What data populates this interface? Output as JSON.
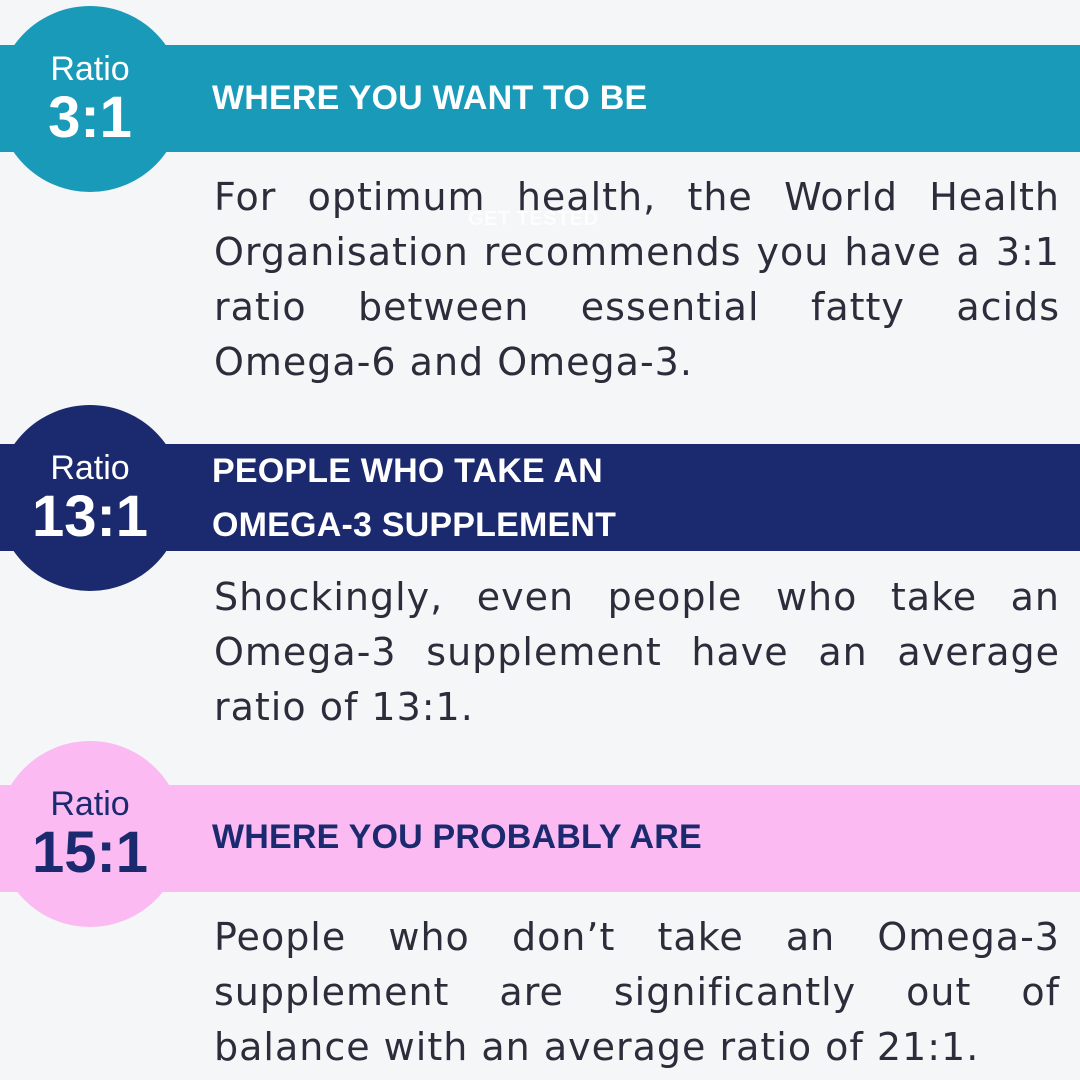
{
  "colors": {
    "background": "#f4f6f8",
    "teal": "#1a9ab9",
    "navy": "#1b2a6e",
    "pink": "#fbbaf2",
    "white": "#ffffff",
    "body_text": "#2c2c3a"
  },
  "sections": [
    {
      "badge_word": "Ratio",
      "badge_ratio": "3:1",
      "heading": "WHERE YOU WANT TO BE",
      "body": "For optimum health, the World Health Organisation recommends you have a 3:1 ratio between essential fatty acids Omega-6 and Omega-3."
    },
    {
      "badge_word": "Ratio",
      "badge_ratio": "13:1",
      "heading_line1": "PEOPLE WHO TAKE AN",
      "heading_line2": "OMEGA-3 SUPPLEMENT",
      "body": "Shockingly, even people who take an Omega-3 supplement have an average ratio of 13:1."
    },
    {
      "badge_word": "Ratio",
      "badge_ratio": "15:1",
      "heading": "WHERE YOU PROBABLY ARE",
      "body": "People who don’t take an Omega-3 supplement are significantly out of balance with an average ratio of 21:1."
    }
  ],
  "overlay_text": "GET TESTED"
}
